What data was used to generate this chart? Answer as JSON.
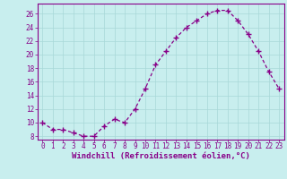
{
  "x": [
    0,
    1,
    2,
    3,
    4,
    5,
    6,
    7,
    8,
    9,
    10,
    11,
    12,
    13,
    14,
    15,
    16,
    17,
    18,
    19,
    20,
    21,
    22,
    23
  ],
  "y": [
    10,
    9,
    9,
    8.5,
    8,
    8,
    9.5,
    10.5,
    10,
    12,
    15,
    18.5,
    20.5,
    22.5,
    24,
    25,
    26,
    26.5,
    26.5,
    25,
    23,
    20.5,
    17.5,
    15
  ],
  "line_color": "#880088",
  "marker": "+",
  "marker_size": 4,
  "bg_color": "#c8eeee",
  "grid_color": "#a8d8d8",
  "axis_color": "#880088",
  "tick_color": "#880088",
  "xlabel": "Windchill (Refroidissement éolien,°C)",
  "ylabel": "",
  "xlim_min": -0.5,
  "xlim_max": 23.5,
  "ylim_min": 7.5,
  "ylim_max": 27.5,
  "yticks": [
    8,
    10,
    12,
    14,
    16,
    18,
    20,
    22,
    24,
    26
  ],
  "xticks": [
    0,
    1,
    2,
    3,
    4,
    5,
    6,
    7,
    8,
    9,
    10,
    11,
    12,
    13,
    14,
    15,
    16,
    17,
    18,
    19,
    20,
    21,
    22,
    23
  ],
  "xlabel_fontsize": 6.5,
  "tick_fontsize": 5.5,
  "linewidth": 0.9,
  "marker_linewidth": 1.0
}
